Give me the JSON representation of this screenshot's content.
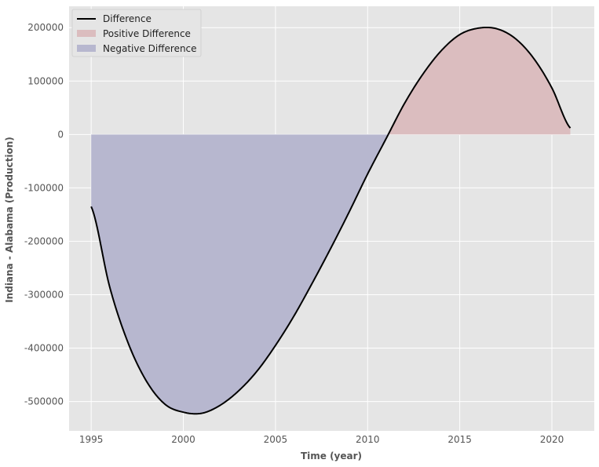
{
  "chart_data": {
    "type": "area",
    "xlabel": "Time (year)",
    "ylabel": "Indiana - Alabama (Production)",
    "xlim": [
      1993.8,
      2022.3
    ],
    "ylim": [
      -555000,
      240000
    ],
    "x_ticks": [
      1995,
      2000,
      2005,
      2010,
      2015,
      2020
    ],
    "y_ticks": [
      -500000,
      -400000,
      -300000,
      -200000,
      -100000,
      0,
      100000,
      200000
    ],
    "grid": true,
    "legend_position": "top-left",
    "series": [
      {
        "name": "Difference",
        "color": "#000000",
        "x": [
          1995,
          1996,
          1997,
          1998,
          1999,
          2000,
          2001,
          2002,
          2003,
          2004,
          2005,
          2006,
          2007,
          2008,
          2009,
          2010,
          2011,
          2012,
          2013,
          2014,
          2015,
          2016,
          2017,
          2018,
          2019,
          2020,
          2021
        ],
        "y": [
          -135000,
          -285000,
          -390000,
          -462000,
          -505000,
          -520000,
          -522000,
          -507000,
          -480000,
          -443000,
          -395000,
          -340000,
          -278000,
          -213000,
          -145000,
          -74000,
          -8000,
          58000,
          113000,
          157000,
          187000,
          199000,
          198000,
          180000,
          143000,
          87000,
          12000
        ]
      },
      {
        "name": "Positive Difference",
        "color": "#dbbdbf"
      },
      {
        "name": "Negative Difference",
        "color": "#b7b7cf"
      }
    ]
  }
}
